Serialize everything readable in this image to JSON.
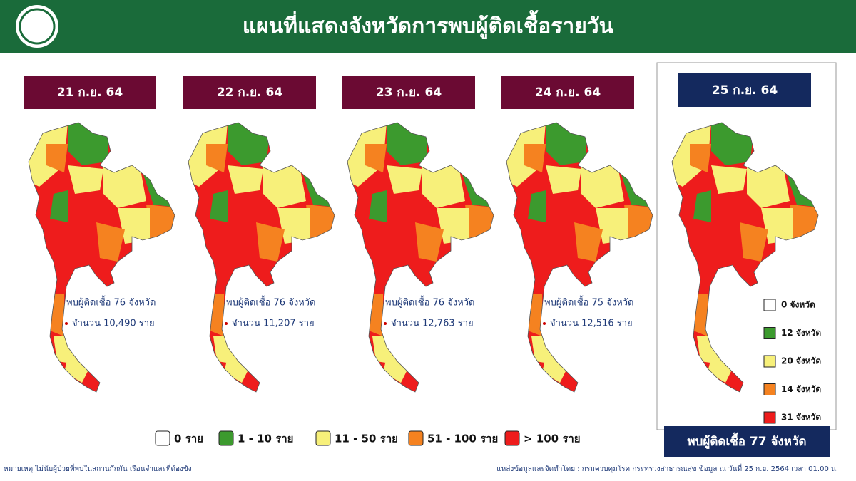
{
  "header": {
    "title": "แผนที่แสดงจังหวัดการพบผู้ติดเชื้อรายวัน"
  },
  "days": [
    {
      "date": "21 ก.ย. 64",
      "provinces": "พบผู้ติดเชื้อ 76 จังหวัด",
      "cases": "จำนวน 10,490 ราย"
    },
    {
      "date": "22 ก.ย. 64",
      "provinces": "พบผู้ติดเชื้อ 76 จังหวัด",
      "cases": "จำนวน 11,207 ราย"
    },
    {
      "date": "23 ก.ย. 64",
      "provinces": "พบผู้ติดเชื้อ 76 จังหวัด",
      "cases": "จำนวน 12,763 ราย"
    },
    {
      "date": "24 ก.ย. 64",
      "provinces": "พบผู้ติดเชื้อ 75 จังหวัด",
      "cases": "จำนวน 12,516 ราย"
    }
  ],
  "latest": {
    "date": "25 ก.ย. 64",
    "summary": "พบผู้ติดเชื้อ 77 จังหวัด",
    "counts": [
      "0 จังหวัด",
      "12 จังหวัด",
      "20 จังหวัด",
      "14 จังหวัด",
      "31 จังหวัด"
    ]
  },
  "legend": [
    "0 ราย",
    "1 - 10 ราย",
    "11 - 50 ราย",
    "51 - 100 ราย",
    "> 100 ราย"
  ],
  "footnote": "หมายเหตุ ไม่นับผู้ป่วยที่พบในสถานกักกัน เรือนจำและที่ต้องขัง",
  "source": "แหล่งข้อมูลและจัดทำโดย : กรมควบคุมโรค กระทรวงสาธารณสุข ข้อมูล ณ วันที่ 25 ก.ย. 2564 เวลา 01.00 น."
}
